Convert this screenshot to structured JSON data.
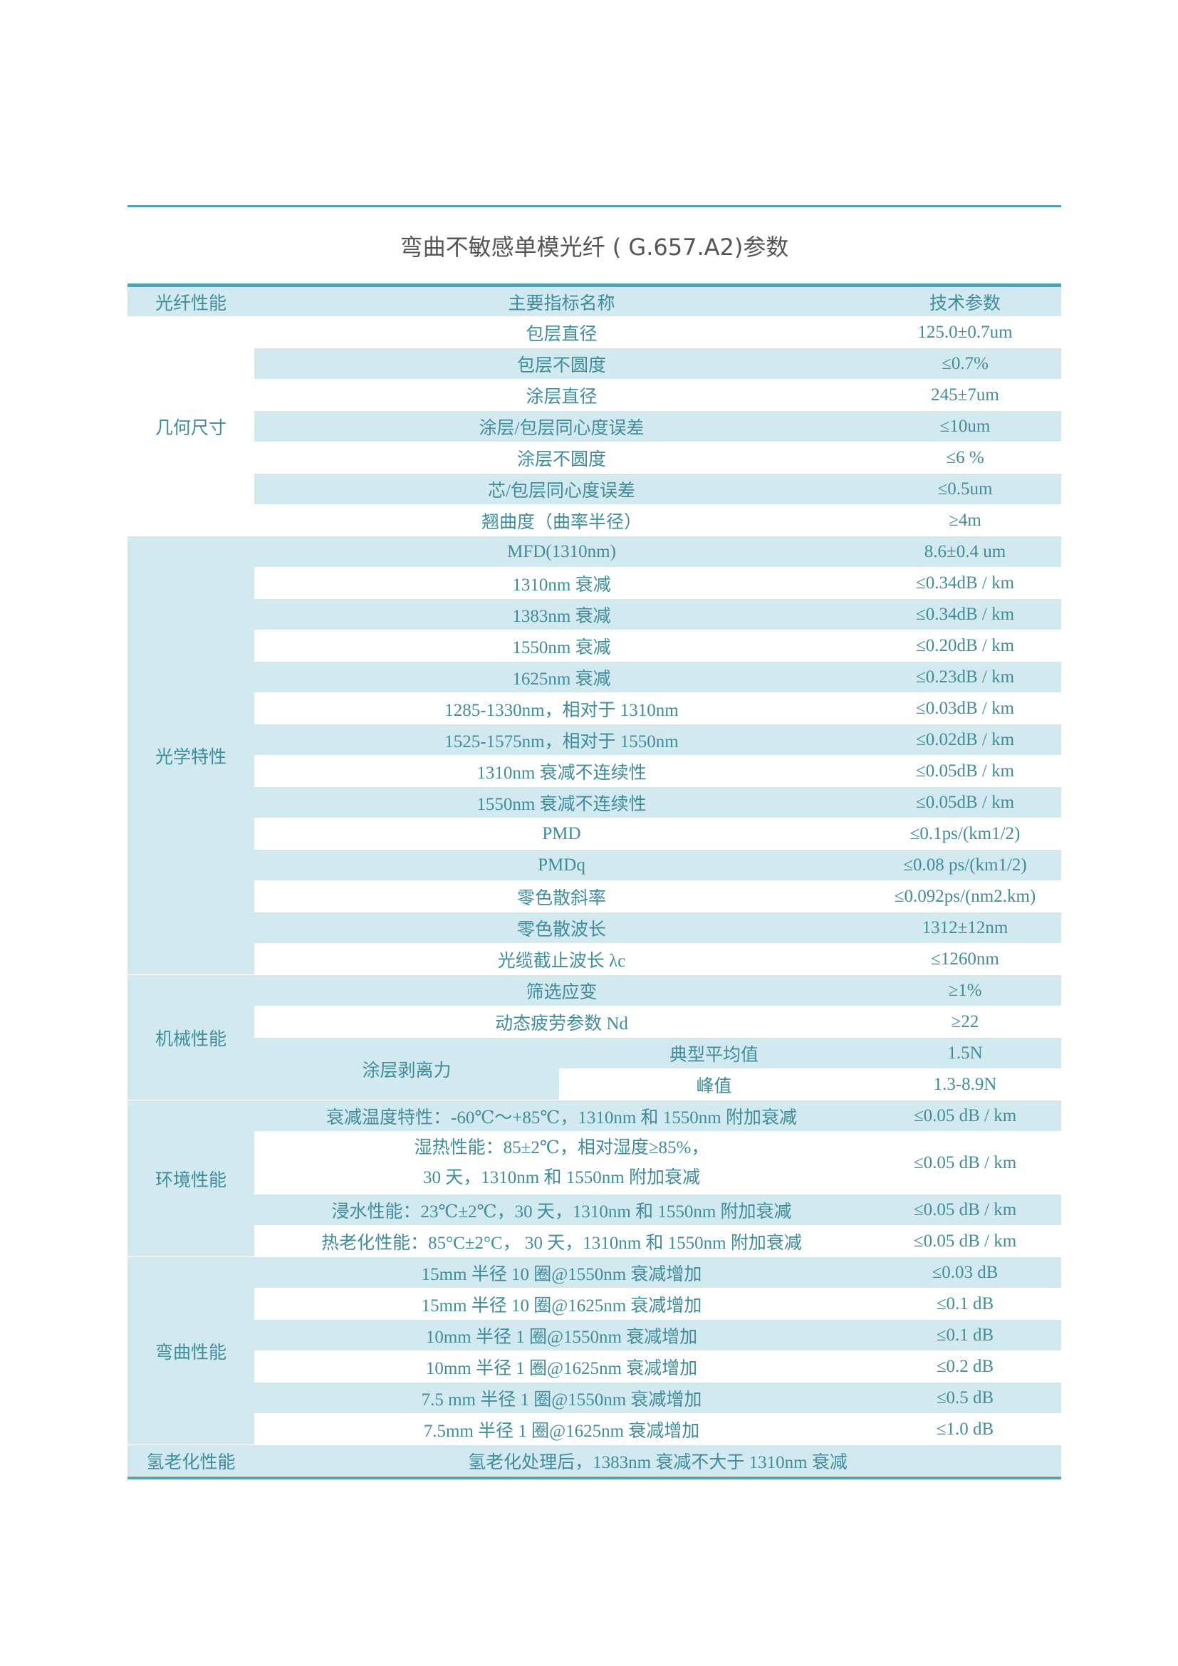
{
  "title": "弯曲不敏感单模光纤 ( G.657.A2)参数",
  "colors": {
    "rule": "#4fa3b5",
    "shade": "#d3e9f0",
    "text": "#3f8d9c"
  },
  "header": {
    "category": "光纤性能",
    "name": "主要指标名称",
    "value": "技术参数"
  },
  "sections": [
    {
      "category": "几何尺寸",
      "rows": [
        {
          "name": "包层直径",
          "value": "125.0±0.7um"
        },
        {
          "name": "包层不圆度",
          "value": "≤0.7%"
        },
        {
          "name": "涂层直径",
          "value": "245±7um"
        },
        {
          "name": "涂层/包层同心度误差",
          "value": "≤10um"
        },
        {
          "name": "涂层不圆度",
          "value": "≤6 %"
        },
        {
          "name": "芯/包层同心度误差",
          "value": "≤0.5um"
        },
        {
          "name": "翘曲度（曲率半径）",
          "value": "≥4m"
        }
      ]
    },
    {
      "category": "光学特性",
      "rows": [
        {
          "name": "MFD(1310nm)",
          "value": "8.6±0.4 um"
        },
        {
          "name": "1310nm 衰减",
          "value": "≤0.34dB / km"
        },
        {
          "name": "1383nm 衰减",
          "value": "≤0.34dB / km"
        },
        {
          "name": "1550nm 衰减",
          "value": "≤0.20dB / km"
        },
        {
          "name": "1625nm 衰减",
          "value": "≤0.23dB / km"
        },
        {
          "name": "1285-1330nm，相对于 1310nm",
          "value": "≤0.03dB / km"
        },
        {
          "name": "1525-1575nm，相对于 1550nm",
          "value": "≤0.02dB / km"
        },
        {
          "name": "1310nm 衰减不连续性",
          "value": "≤0.05dB / km"
        },
        {
          "name": "1550nm 衰减不连续性",
          "value": "≤0.05dB / km"
        },
        {
          "name": "PMD",
          "value": "≤0.1ps/(km1/2)"
        },
        {
          "name": "PMDq",
          "value": "≤0.08 ps/(km1/2)"
        },
        {
          "name": "零色散斜率",
          "value": "≤0.092ps/(nm2.km)"
        },
        {
          "name": "零色散波长",
          "value": "1312±12nm"
        },
        {
          "name": "光缆截止波长 λc",
          "value": "≤1260nm"
        }
      ]
    },
    {
      "category": "机械性能",
      "rows": [
        {
          "name": "筛选应变",
          "value": "≥1%"
        },
        {
          "name": "动态疲劳参数 Nd",
          "value": "≥22"
        },
        {
          "name": "涂层剥离力",
          "sub": [
            {
              "name": "典型平均值",
              "value": "1.5N"
            },
            {
              "name": "峰值",
              "value": "1.3-8.9N"
            }
          ]
        }
      ]
    },
    {
      "category": "环境性能",
      "rows": [
        {
          "name": "衰减温度特性：-60℃～+85℃，1310nm 和 1550nm 附加衰减",
          "value": "≤0.05 dB / km"
        },
        {
          "name": "湿热性能：85±2℃，相对湿度≥85%，",
          "name2": "30 天，1310nm 和 1550nm 附加衰减",
          "value": "≤0.05 dB / km"
        },
        {
          "name": "浸水性能：23℃±2℃，30 天，1310nm 和 1550nm 附加衰减",
          "value": "≤0.05 dB / km"
        },
        {
          "name": "热老化性能：85°C±2°C， 30 天，1310nm 和 1550nm 附加衰减",
          "value": "≤0.05 dB / km"
        }
      ]
    },
    {
      "category": "弯曲性能",
      "rows": [
        {
          "name": "15mm 半径 10 圈@1550nm 衰减增加",
          "value": "≤0.03 dB"
        },
        {
          "name": "15mm 半径 10 圈@1625nm 衰减增加",
          "value": "≤0.1 dB"
        },
        {
          "name": "10mm 半径 1 圈@1550nm 衰减增加",
          "value": "≤0.1 dB"
        },
        {
          "name": "10mm 半径 1 圈@1625nm 衰减增加",
          "value": "≤0.2 dB"
        },
        {
          "name": "7.5 mm 半径 1 圈@1550nm 衰减增加",
          "value": "≤0.5 dB"
        },
        {
          "name": "7.5mm 半径 1 圈@1625nm 衰减增加",
          "value": "≤1.0 dB"
        }
      ]
    },
    {
      "category": "氢老化性能",
      "rows": [
        {
          "name": "氢老化处理后，1383nm 衰减不大于 1310nm 衰减",
          "span": true
        }
      ]
    }
  ]
}
